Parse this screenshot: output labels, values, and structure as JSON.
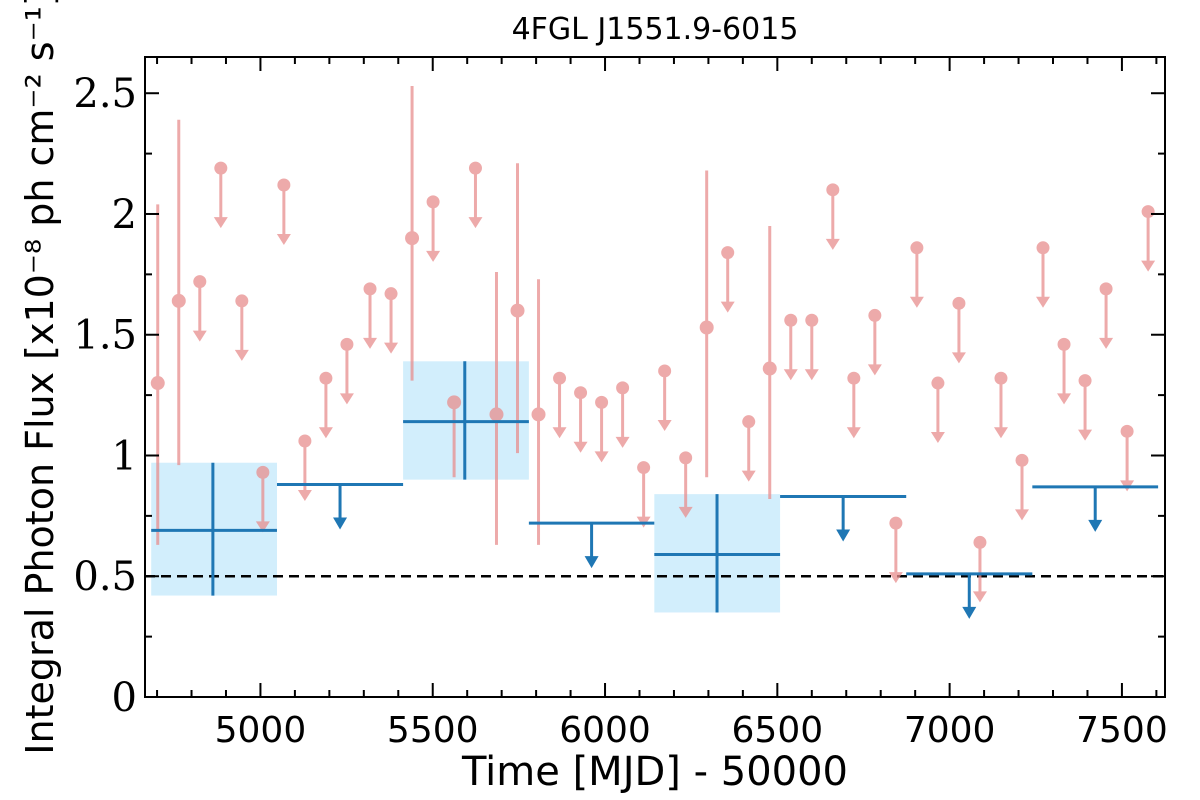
{
  "chart_data": {
    "type": "scatter",
    "title": "4FGL J1551.9-6015",
    "xlabel": "Time [MJD] - 50000",
    "ylabel": "Integral Photon Flux [x10⁻⁸ ph cm⁻² s⁻¹]",
    "xlim": [
      4665,
      7625
    ],
    "ylim": [
      0,
      2.65
    ],
    "xticks": [
      5000,
      5500,
      6000,
      6500,
      7000,
      7500
    ],
    "xtick_labels": [
      "5000",
      "5500",
      "6000",
      "6500",
      "7000",
      "7500"
    ],
    "yticks": [
      0,
      0.5,
      1,
      1.5,
      2,
      2.5
    ],
    "ytick_labels": [
      "0",
      "0.5",
      "1",
      "1.5",
      "2",
      "2.5"
    ],
    "reference_line": {
      "y": 0.5,
      "style": "dashed",
      "color": "#000000"
    },
    "grid": false,
    "colors": {
      "short": "#e88e8e",
      "long": "#1f77b4",
      "long_band": "#d2eefc"
    },
    "short_bin_detections": [
      {
        "x": 4702,
        "y": 1.3,
        "ylo": 0.63,
        "yhi": 2.04
      },
      {
        "x": 4763,
        "y": 1.64,
        "ylo": 0.96,
        "yhi": 2.39
      },
      {
        "x": 5440,
        "y": 1.9,
        "ylo": 1.31,
        "yhi": 2.53
      },
      {
        "x": 5562,
        "y": 1.22,
        "ylo": 0.91,
        "yhi": 1.22
      },
      {
        "x": 5685,
        "y": 1.17,
        "ylo": 0.63,
        "yhi": 1.76
      },
      {
        "x": 5746,
        "y": 1.6,
        "ylo": 1.01,
        "yhi": 2.21
      },
      {
        "x": 5807,
        "y": 1.17,
        "ylo": 0.63,
        "yhi": 1.73
      },
      {
        "x": 6295,
        "y": 1.53,
        "ylo": 0.91,
        "yhi": 2.18
      },
      {
        "x": 6478,
        "y": 1.36,
        "ylo": 0.82,
        "yhi": 1.95
      }
    ],
    "short_bin_upper_limits": [
      {
        "x": 4824,
        "y": 1.72
      },
      {
        "x": 4885,
        "y": 2.19
      },
      {
        "x": 4946,
        "y": 1.64
      },
      {
        "x": 5007,
        "y": 0.93
      },
      {
        "x": 5068,
        "y": 2.12
      },
      {
        "x": 5129,
        "y": 1.06
      },
      {
        "x": 5190,
        "y": 1.32
      },
      {
        "x": 5251,
        "y": 1.46
      },
      {
        "x": 5318,
        "y": 1.69
      },
      {
        "x": 5379,
        "y": 1.67
      },
      {
        "x": 5501,
        "y": 2.05
      },
      {
        "x": 5624,
        "y": 2.19
      },
      {
        "x": 5868,
        "y": 1.32
      },
      {
        "x": 5929,
        "y": 1.26
      },
      {
        "x": 5990,
        "y": 1.22
      },
      {
        "x": 6051,
        "y": 1.28
      },
      {
        "x": 6112,
        "y": 0.95
      },
      {
        "x": 6173,
        "y": 1.35
      },
      {
        "x": 6234,
        "y": 0.99
      },
      {
        "x": 6356,
        "y": 1.84
      },
      {
        "x": 6417,
        "y": 1.14
      },
      {
        "x": 6539,
        "y": 1.56
      },
      {
        "x": 6600,
        "y": 1.56
      },
      {
        "x": 6661,
        "y": 2.1
      },
      {
        "x": 6722,
        "y": 1.32
      },
      {
        "x": 6783,
        "y": 1.58
      },
      {
        "x": 6844,
        "y": 0.72
      },
      {
        "x": 6905,
        "y": 1.86
      },
      {
        "x": 6966,
        "y": 1.3
      },
      {
        "x": 7027,
        "y": 1.63
      },
      {
        "x": 7088,
        "y": 0.64
      },
      {
        "x": 7149,
        "y": 1.32
      },
      {
        "x": 7210,
        "y": 0.98
      },
      {
        "x": 7271,
        "y": 1.86
      },
      {
        "x": 7332,
        "y": 1.46
      },
      {
        "x": 7393,
        "y": 1.31
      },
      {
        "x": 7454,
        "y": 1.69
      },
      {
        "x": 7515,
        "y": 1.1
      },
      {
        "x": 7576,
        "y": 2.01
      }
    ],
    "long_bin_detections": [
      {
        "x": 4862,
        "x_lo": 4683,
        "x_hi": 5048,
        "y": 0.69,
        "ylo": 0.42,
        "yhi": 0.97
      },
      {
        "x": 5593,
        "x_lo": 5414,
        "x_hi": 5779,
        "y": 1.14,
        "ylo": 0.9,
        "yhi": 1.39
      },
      {
        "x": 6325,
        "x_lo": 6143,
        "x_hi": 6508,
        "y": 0.59,
        "ylo": 0.35,
        "yhi": 0.84
      }
    ],
    "long_bin_upper_limits": [
      {
        "x_lo": 5048,
        "x_hi": 5414,
        "y": 0.88
      },
      {
        "x_lo": 5779,
        "x_hi": 6143,
        "y": 0.72
      },
      {
        "x_lo": 6508,
        "x_hi": 6874,
        "y": 0.83
      },
      {
        "x_lo": 6874,
        "x_hi": 7240,
        "y": 0.51
      },
      {
        "x_lo": 7240,
        "x_hi": 7605,
        "y": 0.87
      }
    ]
  }
}
